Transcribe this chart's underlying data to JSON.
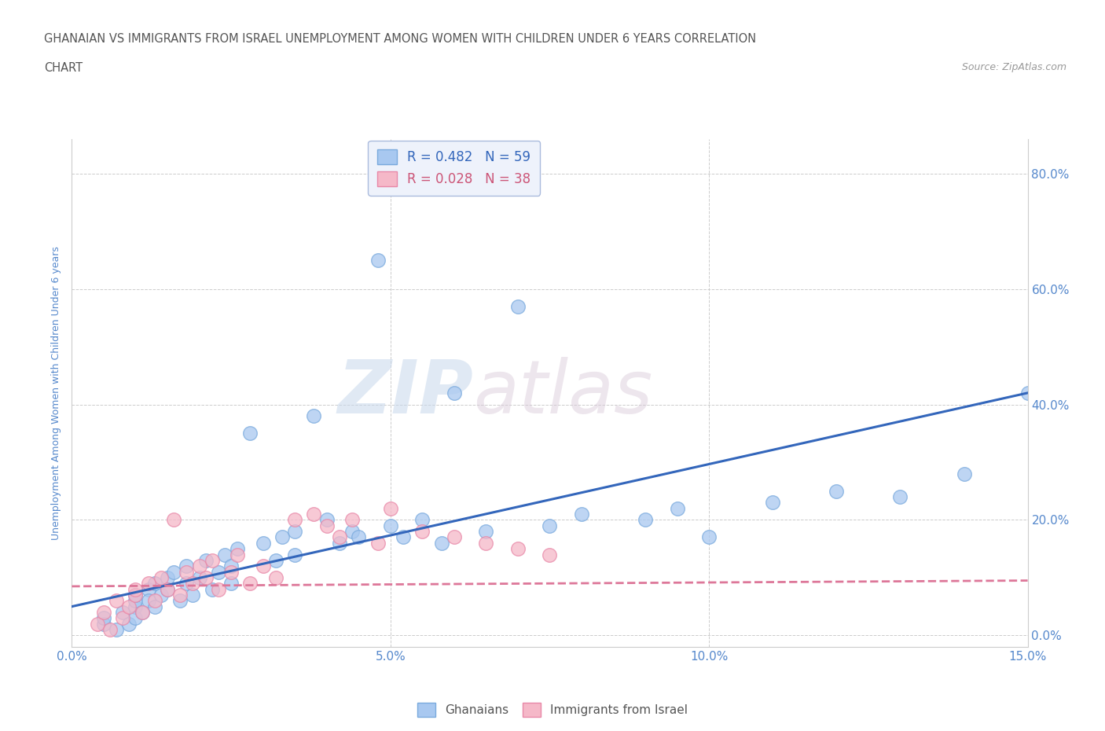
{
  "title_line1": "GHANAIAN VS IMMIGRANTS FROM ISRAEL UNEMPLOYMENT AMONG WOMEN WITH CHILDREN UNDER 6 YEARS CORRELATION",
  "title_line2": "CHART",
  "source": "Source: ZipAtlas.com",
  "ylabel": "Unemployment Among Women with Children Under 6 years",
  "xlim": [
    0.0,
    0.15
  ],
  "ylim": [
    -0.02,
    0.86
  ],
  "xticks": [
    0.0,
    0.05,
    0.1,
    0.15
  ],
  "xtick_labels": [
    "0.0%",
    "5.0%",
    "10.0%",
    "15.0%"
  ],
  "yticks": [
    0.0,
    0.2,
    0.4,
    0.6,
    0.8
  ],
  "ytick_labels": [
    "0.0%",
    "20.0%",
    "40.0%",
    "60.0%",
    "80.0%"
  ],
  "watermark_zip": "ZIP",
  "watermark_atlas": "atlas",
  "ghanaian_color": "#a8c8f0",
  "ghanaian_edge_color": "#7aaadd",
  "israel_color": "#f5b8c8",
  "israel_edge_color": "#e888a8",
  "ghanaian_R": 0.482,
  "ghanaian_N": 59,
  "israel_R": 0.028,
  "israel_N": 38,
  "ghanaian_line_color": "#3366bb",
  "israel_line_color": "#dd7799",
  "background_color": "#ffffff",
  "grid_color": "#cccccc",
  "title_color": "#555555",
  "axis_tick_color": "#5588cc",
  "ylabel_color": "#5588cc",
  "legend_face_color": "#eef2fb",
  "legend_edge_color": "#aabbdd",
  "ghanaian_legend_color": "#3366bb",
  "israel_legend_color": "#cc5577",
  "ghanaian_x": [
    0.005,
    0.005,
    0.007,
    0.008,
    0.009,
    0.01,
    0.01,
    0.01,
    0.01,
    0.011,
    0.012,
    0.012,
    0.013,
    0.013,
    0.014,
    0.015,
    0.015,
    0.016,
    0.017,
    0.018,
    0.018,
    0.019,
    0.02,
    0.021,
    0.022,
    0.023,
    0.024,
    0.025,
    0.025,
    0.026,
    0.028,
    0.03,
    0.032,
    0.033,
    0.035,
    0.035,
    0.038,
    0.04,
    0.042,
    0.044,
    0.045,
    0.048,
    0.05,
    0.052,
    0.055,
    0.058,
    0.06,
    0.065,
    0.07,
    0.075,
    0.08,
    0.09,
    0.095,
    0.1,
    0.11,
    0.12,
    0.13,
    0.14,
    0.15
  ],
  "ghanaian_y": [
    0.02,
    0.03,
    0.01,
    0.04,
    0.02,
    0.05,
    0.06,
    0.03,
    0.07,
    0.04,
    0.08,
    0.06,
    0.09,
    0.05,
    0.07,
    0.1,
    0.08,
    0.11,
    0.06,
    0.09,
    0.12,
    0.07,
    0.1,
    0.13,
    0.08,
    0.11,
    0.14,
    0.12,
    0.09,
    0.15,
    0.35,
    0.16,
    0.13,
    0.17,
    0.18,
    0.14,
    0.38,
    0.2,
    0.16,
    0.18,
    0.17,
    0.65,
    0.19,
    0.17,
    0.2,
    0.16,
    0.42,
    0.18,
    0.57,
    0.19,
    0.21,
    0.2,
    0.22,
    0.17,
    0.23,
    0.25,
    0.24,
    0.28,
    0.42
  ],
  "israel_x": [
    0.004,
    0.005,
    0.006,
    0.007,
    0.008,
    0.009,
    0.01,
    0.01,
    0.011,
    0.012,
    0.013,
    0.014,
    0.015,
    0.016,
    0.017,
    0.018,
    0.019,
    0.02,
    0.021,
    0.022,
    0.023,
    0.025,
    0.026,
    0.028,
    0.03,
    0.032,
    0.035,
    0.038,
    0.04,
    0.042,
    0.044,
    0.048,
    0.05,
    0.055,
    0.06,
    0.065,
    0.07,
    0.075
  ],
  "israel_y": [
    0.02,
    0.04,
    0.01,
    0.06,
    0.03,
    0.05,
    0.07,
    0.08,
    0.04,
    0.09,
    0.06,
    0.1,
    0.08,
    0.2,
    0.07,
    0.11,
    0.09,
    0.12,
    0.1,
    0.13,
    0.08,
    0.11,
    0.14,
    0.09,
    0.12,
    0.1,
    0.2,
    0.21,
    0.19,
    0.17,
    0.2,
    0.16,
    0.22,
    0.18,
    0.17,
    0.16,
    0.15,
    0.14
  ],
  "trend_ghanaian_x0": 0.0,
  "trend_ghanaian_y0": 0.05,
  "trend_ghanaian_x1": 0.15,
  "trend_ghanaian_y1": 0.42,
  "trend_israel_x0": 0.0,
  "trend_israel_y0": 0.085,
  "trend_israel_x1": 0.15,
  "trend_israel_y1": 0.095
}
